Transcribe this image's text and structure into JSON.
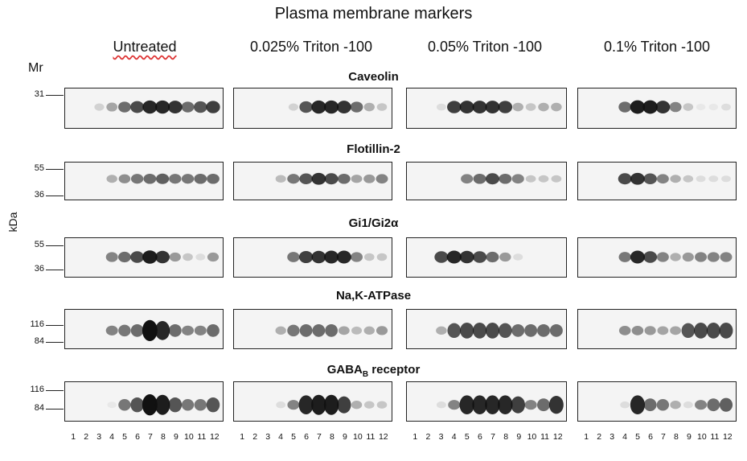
{
  "figure": {
    "title": "Plasma membrane markers",
    "conditions": [
      "Untreated",
      "0.025% Triton -100",
      "0.05% Triton -100",
      "0.1% Triton -100"
    ],
    "mr_label": "Mr",
    "unit_label": "kDa",
    "lanes": [
      "1",
      "2",
      "3",
      "4",
      "5",
      "6",
      "7",
      "8",
      "9",
      "10",
      "11",
      "12"
    ],
    "blots": [
      {
        "name": "Caveolin",
        "markers": [
          "31"
        ]
      },
      {
        "name": "Flotillin-2",
        "markers": [
          "55",
          "36"
        ]
      },
      {
        "name": "Gi1/Gi2α",
        "markers": [
          "55",
          "36"
        ]
      },
      {
        "name": "Na,K-ATPase",
        "markers": [
          "116",
          "84"
        ]
      },
      {
        "name": "GABA",
        "name_sub": "B",
        "name_suffix": " receptor",
        "markers": [
          "116",
          "84"
        ]
      }
    ]
  },
  "colors": {
    "band": "#111111",
    "panel_bg": "#f4f4f4",
    "border": "#222222"
  }
}
